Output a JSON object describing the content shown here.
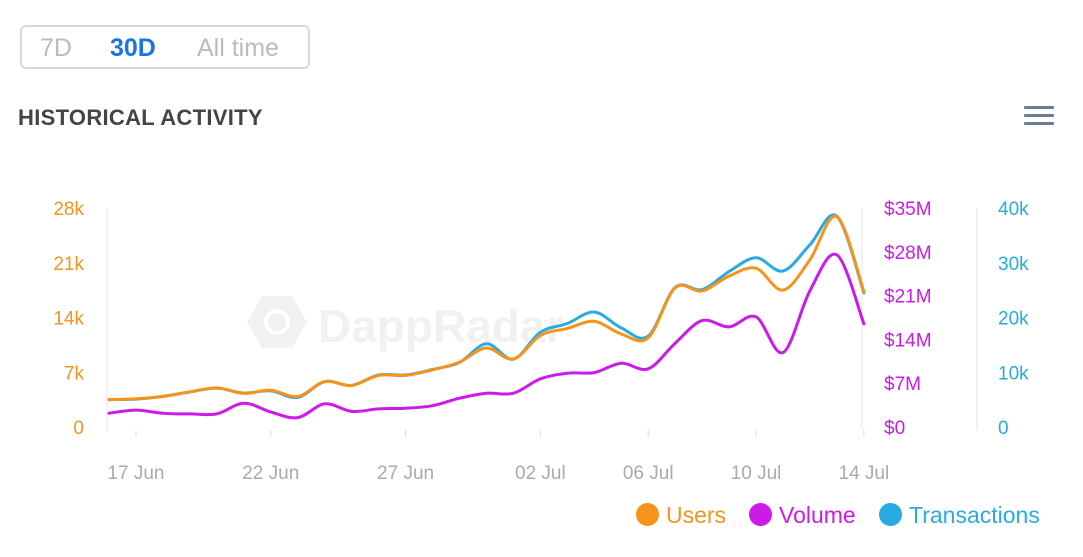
{
  "range_tabs": [
    {
      "label": "7D",
      "active": false
    },
    {
      "label": "30D",
      "active": true
    },
    {
      "label": "All time",
      "active": false
    }
  ],
  "title": "HISTORICAL ACTIVITY",
  "menu_icon": "hamburger-menu-icon",
  "watermark": "DappRadar",
  "colors": {
    "users": "#f7931a",
    "volume": "#cc1aeb",
    "transactions": "#29abe2",
    "axis_text": "#aaaaaa",
    "grid": "#eeeeee"
  },
  "chart_data": {
    "type": "line",
    "x_tick_labels": [
      "17 Jun",
      "22 Jun",
      "27 Jun",
      "02 Jul",
      "06 Jul",
      "10 Jul",
      "14 Jul"
    ],
    "x": [
      "16 Jun",
      "17 Jun",
      "18 Jun",
      "19 Jun",
      "20 Jun",
      "21 Jun",
      "22 Jun",
      "23 Jun",
      "24 Jun",
      "25 Jun",
      "26 Jun",
      "27 Jun",
      "28 Jun",
      "29 Jun",
      "30 Jun",
      "01 Jul",
      "02 Jul",
      "03 Jul",
      "04 Jul",
      "05 Jul",
      "06 Jul",
      "07 Jul",
      "08 Jul",
      "09 Jul",
      "10 Jul",
      "11 Jul",
      "12 Jul",
      "13 Jul",
      "14 Jul"
    ],
    "axes": {
      "users": {
        "ticks": [
          "0",
          "7k",
          "14k",
          "21k",
          "28k"
        ],
        "range": [
          0,
          28000
        ]
      },
      "volume": {
        "ticks": [
          "$0",
          "$7M",
          "$14M",
          "$21M",
          "$28M",
          "$35M"
        ],
        "range": [
          0,
          35000000
        ]
      },
      "transactions": {
        "ticks": [
          "0",
          "10k",
          "20k",
          "30k",
          "40k"
        ],
        "range": [
          0,
          40000
        ]
      }
    },
    "series": [
      {
        "name": "Users",
        "axis": "users",
        "values": [
          3500,
          3600,
          3900,
          4500,
          5000,
          4300,
          4700,
          3900,
          5800,
          5300,
          6600,
          6600,
          7300,
          8300,
          10100,
          8700,
          11700,
          12600,
          13500,
          11900,
          11400,
          17800,
          17400,
          19300,
          20300,
          17500,
          21400,
          26900,
          17300
        ]
      },
      {
        "name": "Volume",
        "axis": "volume",
        "values": [
          2200000,
          2700000,
          2200000,
          2100000,
          2100000,
          3800000,
          2400000,
          1500000,
          3700000,
          2500000,
          2900000,
          3000000,
          3400000,
          4600000,
          5400000,
          5400000,
          7700000,
          8600000,
          8700000,
          10200000,
          9300000,
          13400000,
          17000000,
          16000000,
          17600000,
          11900000,
          21800000,
          27500000,
          16500000
        ]
      },
      {
        "name": "Transactions",
        "axis": "transactions",
        "values": [
          5000,
          5100,
          5600,
          6400,
          7100,
          6200,
          6600,
          5400,
          8300,
          7600,
          9500,
          9500,
          10500,
          11800,
          15200,
          12400,
          17300,
          18900,
          21000,
          18100,
          16600,
          25500,
          25100,
          28400,
          30900,
          28500,
          33300,
          38500,
          24500
        ]
      }
    ],
    "legend": [
      "Users",
      "Volume",
      "Transactions"
    ],
    "legend_position": "bottom-right",
    "grid": false
  }
}
